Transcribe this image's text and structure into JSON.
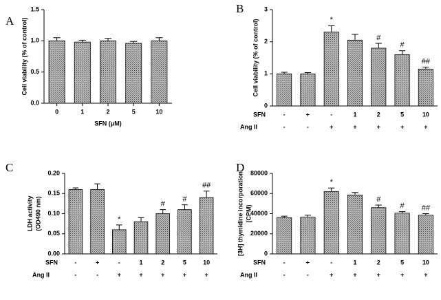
{
  "chart_data": [
    {
      "type": "bar",
      "panel": "A",
      "ylabel": [
        "Cell viability (% of control)"
      ],
      "xlabel": "SFN (μM)",
      "categories": [
        "0",
        "1",
        "2",
        "5",
        "10"
      ],
      "values": [
        1.0,
        0.98,
        1.0,
        0.96,
        1.0
      ],
      "errors": [
        0.05,
        0.03,
        0.04,
        0.03,
        0.05
      ],
      "color": "#a8a8a8",
      "ylim": [
        0,
        1.5
      ],
      "yticks": [
        {
          "value": 0,
          "label": "0.0"
        },
        {
          "value": 0.5,
          "label": "0.5"
        },
        {
          "value": 1,
          "label": "1.0"
        },
        {
          "value": 1.5,
          "label": "1.5"
        }
      ]
    },
    {
      "type": "bar",
      "panel": "B",
      "ylabel": [
        "Cell viability (% of control)"
      ],
      "values": [
        1.0,
        1.0,
        2.3,
        2.05,
        1.8,
        1.6,
        1.15
      ],
      "errors": [
        0.05,
        0.04,
        0.2,
        0.18,
        0.15,
        0.12,
        0.06
      ],
      "annotations": [
        null,
        null,
        "*",
        null,
        "#",
        "#",
        "##"
      ],
      "treatments": [
        {
          "name": "SFN",
          "values": [
            "-",
            "+",
            "-",
            "1",
            "2",
            "5",
            "10"
          ]
        },
        {
          "name": "Ang II",
          "values": [
            "-",
            "-",
            "+",
            "+",
            "+",
            "+",
            "+"
          ]
        }
      ],
      "color": "#a8a8a8",
      "ylim": [
        0,
        3
      ],
      "yticks": [
        0,
        1,
        2,
        3
      ]
    },
    {
      "type": "bar",
      "panel": "C",
      "ylabel": [
        "LDH activity",
        "(OD490 nm)"
      ],
      "values": [
        0.16,
        0.16,
        0.06,
        0.08,
        0.1,
        0.11,
        0.14
      ],
      "errors": [
        0.004,
        0.014,
        0.012,
        0.01,
        0.01,
        0.012,
        0.016
      ],
      "annotations": [
        null,
        null,
        "*",
        null,
        "#",
        "#",
        "##"
      ],
      "treatments": [
        {
          "name": "SFN",
          "values": [
            "-",
            "+",
            "-",
            "1",
            "2",
            "5",
            "10"
          ]
        },
        {
          "name": "Ang II",
          "values": [
            "-",
            "-",
            "+",
            "+",
            "+",
            "+",
            "+"
          ]
        }
      ],
      "color": "#a8a8a8",
      "ylim": [
        0,
        0.2
      ],
      "yticks": [
        {
          "value": 0,
          "label": "0.00"
        },
        {
          "value": 0.05,
          "label": "0.05"
        },
        {
          "value": 0.1,
          "label": "0.10"
        },
        {
          "value": 0.15,
          "label": "0.15"
        },
        {
          "value": 0.2,
          "label": "0.20"
        }
      ]
    },
    {
      "type": "bar",
      "panel": "D",
      "ylabel": [
        "[3H] thymidine incorporation",
        "(CPM)"
      ],
      "values": [
        36000,
        36500,
        62000,
        58500,
        46000,
        40500,
        38500
      ],
      "errors": [
        1500,
        2000,
        3500,
        2500,
        2500,
        1500,
        1500
      ],
      "annotations": [
        null,
        null,
        "*",
        null,
        "#",
        "#",
        "##"
      ],
      "treatments": [
        {
          "name": "SFN",
          "values": [
            "-",
            "+",
            "-",
            "1",
            "2",
            "5",
            "10"
          ]
        },
        {
          "name": "Ang II",
          "values": [
            "-",
            "-",
            "+",
            "+",
            "+",
            "+",
            "+"
          ]
        }
      ],
      "color": "#a8a8a8",
      "ylim": [
        0,
        80000
      ],
      "yticks": [
        0,
        20000,
        40000,
        60000,
        80000
      ]
    }
  ]
}
